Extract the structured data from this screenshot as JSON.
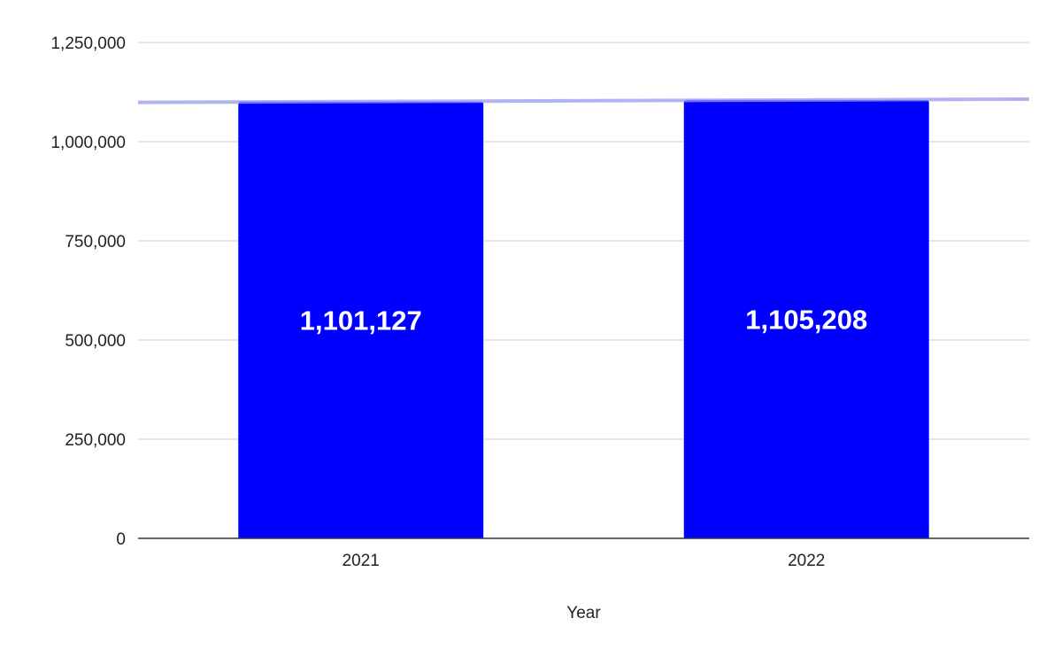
{
  "chart_data": {
    "type": "bar",
    "title": "",
    "xlabel": "Year",
    "ylabel": "",
    "categories": [
      "2021",
      "2022"
    ],
    "series": [
      {
        "values": [
          1101127,
          1105208
        ],
        "data_labels": [
          "1,101,127",
          "1,105,208"
        ],
        "color": "#0000ff"
      }
    ],
    "trendline": {
      "type": "linear",
      "color": "#9999f0"
    },
    "ylim": [
      0,
      1250000
    ],
    "yticks": [
      0,
      250000,
      500000,
      750000,
      1000000,
      1250000
    ],
    "ytick_labels": [
      "0",
      "250,000",
      "500,000",
      "750,000",
      "1,000,000",
      "1,250,000"
    ],
    "grid": true,
    "legend": "none"
  }
}
